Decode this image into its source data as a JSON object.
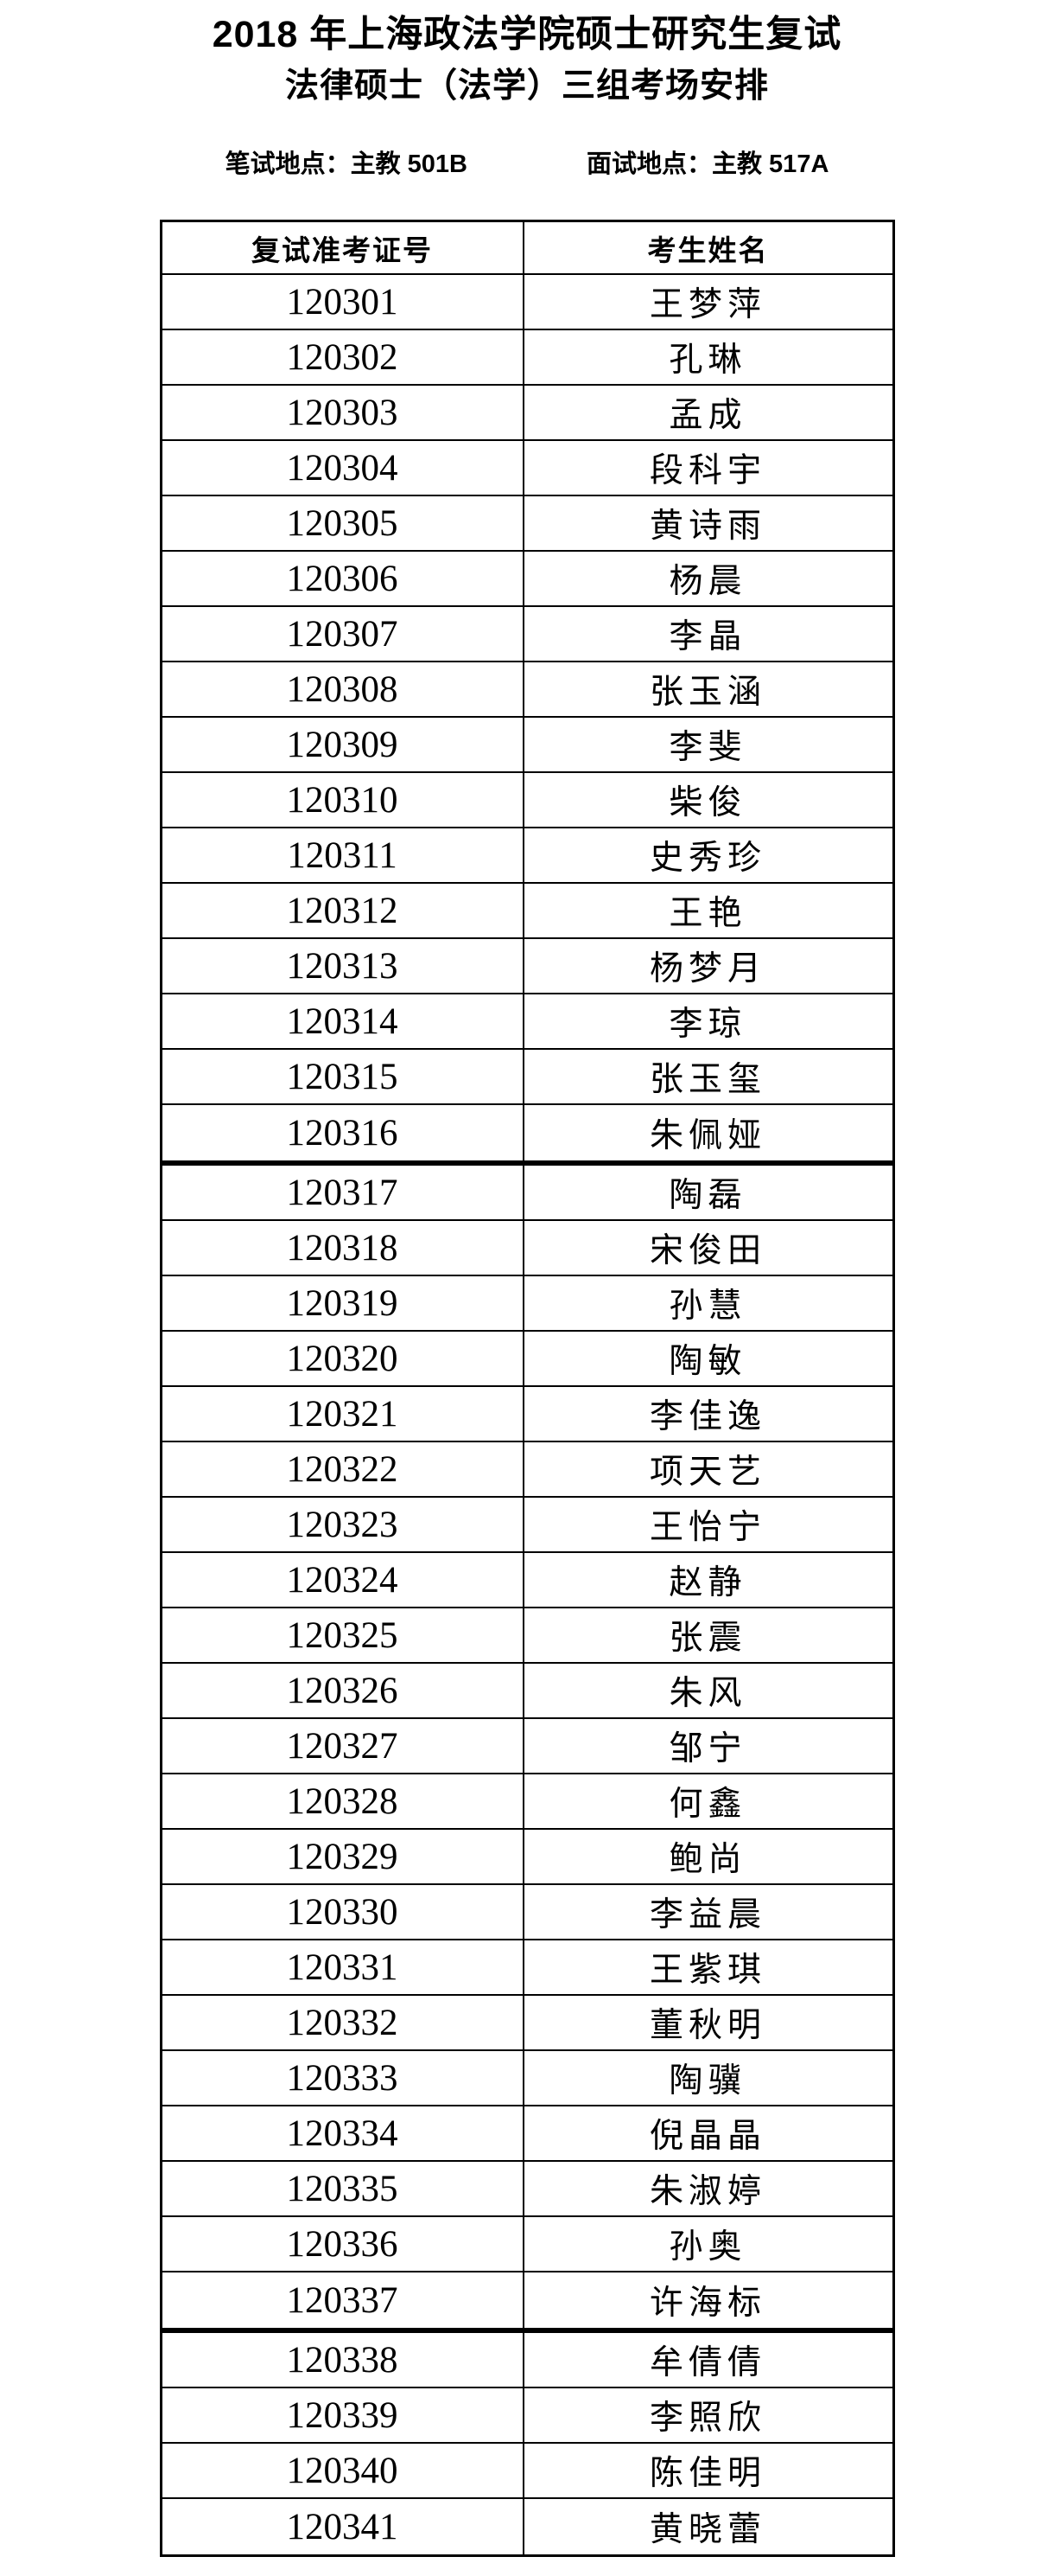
{
  "page": {
    "title_line1": "2018 年上海政法学院硕士研究生复试",
    "title_line2": "法律硕士（法学）三组考场安排",
    "written_exam_location": "笔试地点：主教 501B",
    "interview_location": "面试地点：主教 517A"
  },
  "table": {
    "columns": [
      "复试准考证号",
      "考生姓名"
    ],
    "rows": [
      {
        "admission_no": "120301",
        "name": "王梦萍"
      },
      {
        "admission_no": "120302",
        "name": "孔琳"
      },
      {
        "admission_no": "120303",
        "name": "孟成"
      },
      {
        "admission_no": "120304",
        "name": "段科宇"
      },
      {
        "admission_no": "120305",
        "name": "黄诗雨"
      },
      {
        "admission_no": "120306",
        "name": "杨晨"
      },
      {
        "admission_no": "120307",
        "name": "李晶"
      },
      {
        "admission_no": "120308",
        "name": "张玉涵"
      },
      {
        "admission_no": "120309",
        "name": "李斐"
      },
      {
        "admission_no": "120310",
        "name": "柴俊"
      },
      {
        "admission_no": "120311",
        "name": "史秀珍"
      },
      {
        "admission_no": "120312",
        "name": "王艳"
      },
      {
        "admission_no": "120313",
        "name": "杨梦月"
      },
      {
        "admission_no": "120314",
        "name": "李琼"
      },
      {
        "admission_no": "120315",
        "name": "张玉玺"
      },
      {
        "admission_no": "120316",
        "name": "朱佩娅"
      },
      {
        "admission_no": "120317",
        "name": "陶磊"
      },
      {
        "admission_no": "120318",
        "name": "宋俊田"
      },
      {
        "admission_no": "120319",
        "name": "孙慧"
      },
      {
        "admission_no": "120320",
        "name": "陶敏"
      },
      {
        "admission_no": "120321",
        "name": "李佳逸"
      },
      {
        "admission_no": "120322",
        "name": "项天艺"
      },
      {
        "admission_no": "120323",
        "name": "王怡宁"
      },
      {
        "admission_no": "120324",
        "name": "赵静"
      },
      {
        "admission_no": "120325",
        "name": "张震"
      },
      {
        "admission_no": "120326",
        "name": "朱风"
      },
      {
        "admission_no": "120327",
        "name": "邹宁"
      },
      {
        "admission_no": "120328",
        "name": "何鑫"
      },
      {
        "admission_no": "120329",
        "name": "鲍尚"
      },
      {
        "admission_no": "120330",
        "name": "李益晨"
      },
      {
        "admission_no": "120331",
        "name": "王紫琪"
      },
      {
        "admission_no": "120332",
        "name": "董秋明"
      },
      {
        "admission_no": "120333",
        "name": "陶骥"
      },
      {
        "admission_no": "120334",
        "name": "倪晶晶"
      },
      {
        "admission_no": "120335",
        "name": "朱淑婷"
      },
      {
        "admission_no": "120336",
        "name": "孙奥"
      },
      {
        "admission_no": "120337",
        "name": "许海标"
      },
      {
        "admission_no": "120338",
        "name": "牟倩倩"
      },
      {
        "admission_no": "120339",
        "name": "李照欣"
      },
      {
        "admission_no": "120340",
        "name": "陈佳明"
      },
      {
        "admission_no": "120341",
        "name": "黄晓蕾"
      }
    ],
    "page_break_after": [
      "120316",
      "120337"
    ]
  },
  "colors": {
    "background": "#ffffff",
    "text": "#000000",
    "border": "#000000"
  }
}
